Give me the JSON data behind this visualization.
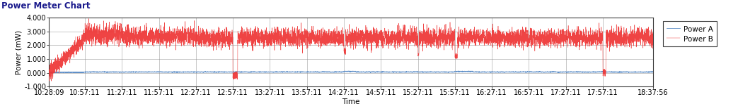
{
  "title": "Power Meter Chart",
  "xlabel": "Time",
  "ylabel": "Power (mW)",
  "ylim": [
    -1.0,
    4.0
  ],
  "yticks": [
    -1.0,
    0.0,
    1.0,
    2.0,
    3.0,
    4.0
  ],
  "xtick_labels": [
    "10:28:09",
    "10:57:11",
    "11:27:11",
    "11:57:11",
    "12:27:11",
    "12:57:11",
    "13:27:11",
    "13:57:11",
    "14:27:11",
    "14:57:11",
    "15:27:11",
    "15:57:11",
    "16:27:11",
    "16:57:11",
    "17:27:11",
    "17:57:11",
    "18:37:56"
  ],
  "power_a_color": "#6090c8",
  "power_b_color": "#ee3030",
  "background_color": "#ffffff",
  "grid_color": "#808080",
  "title_fontsize": 8.5,
  "axis_fontsize": 7.5,
  "tick_fontsize": 7,
  "legend_fontsize": 7.5,
  "n_points": 8000,
  "seed": 123
}
